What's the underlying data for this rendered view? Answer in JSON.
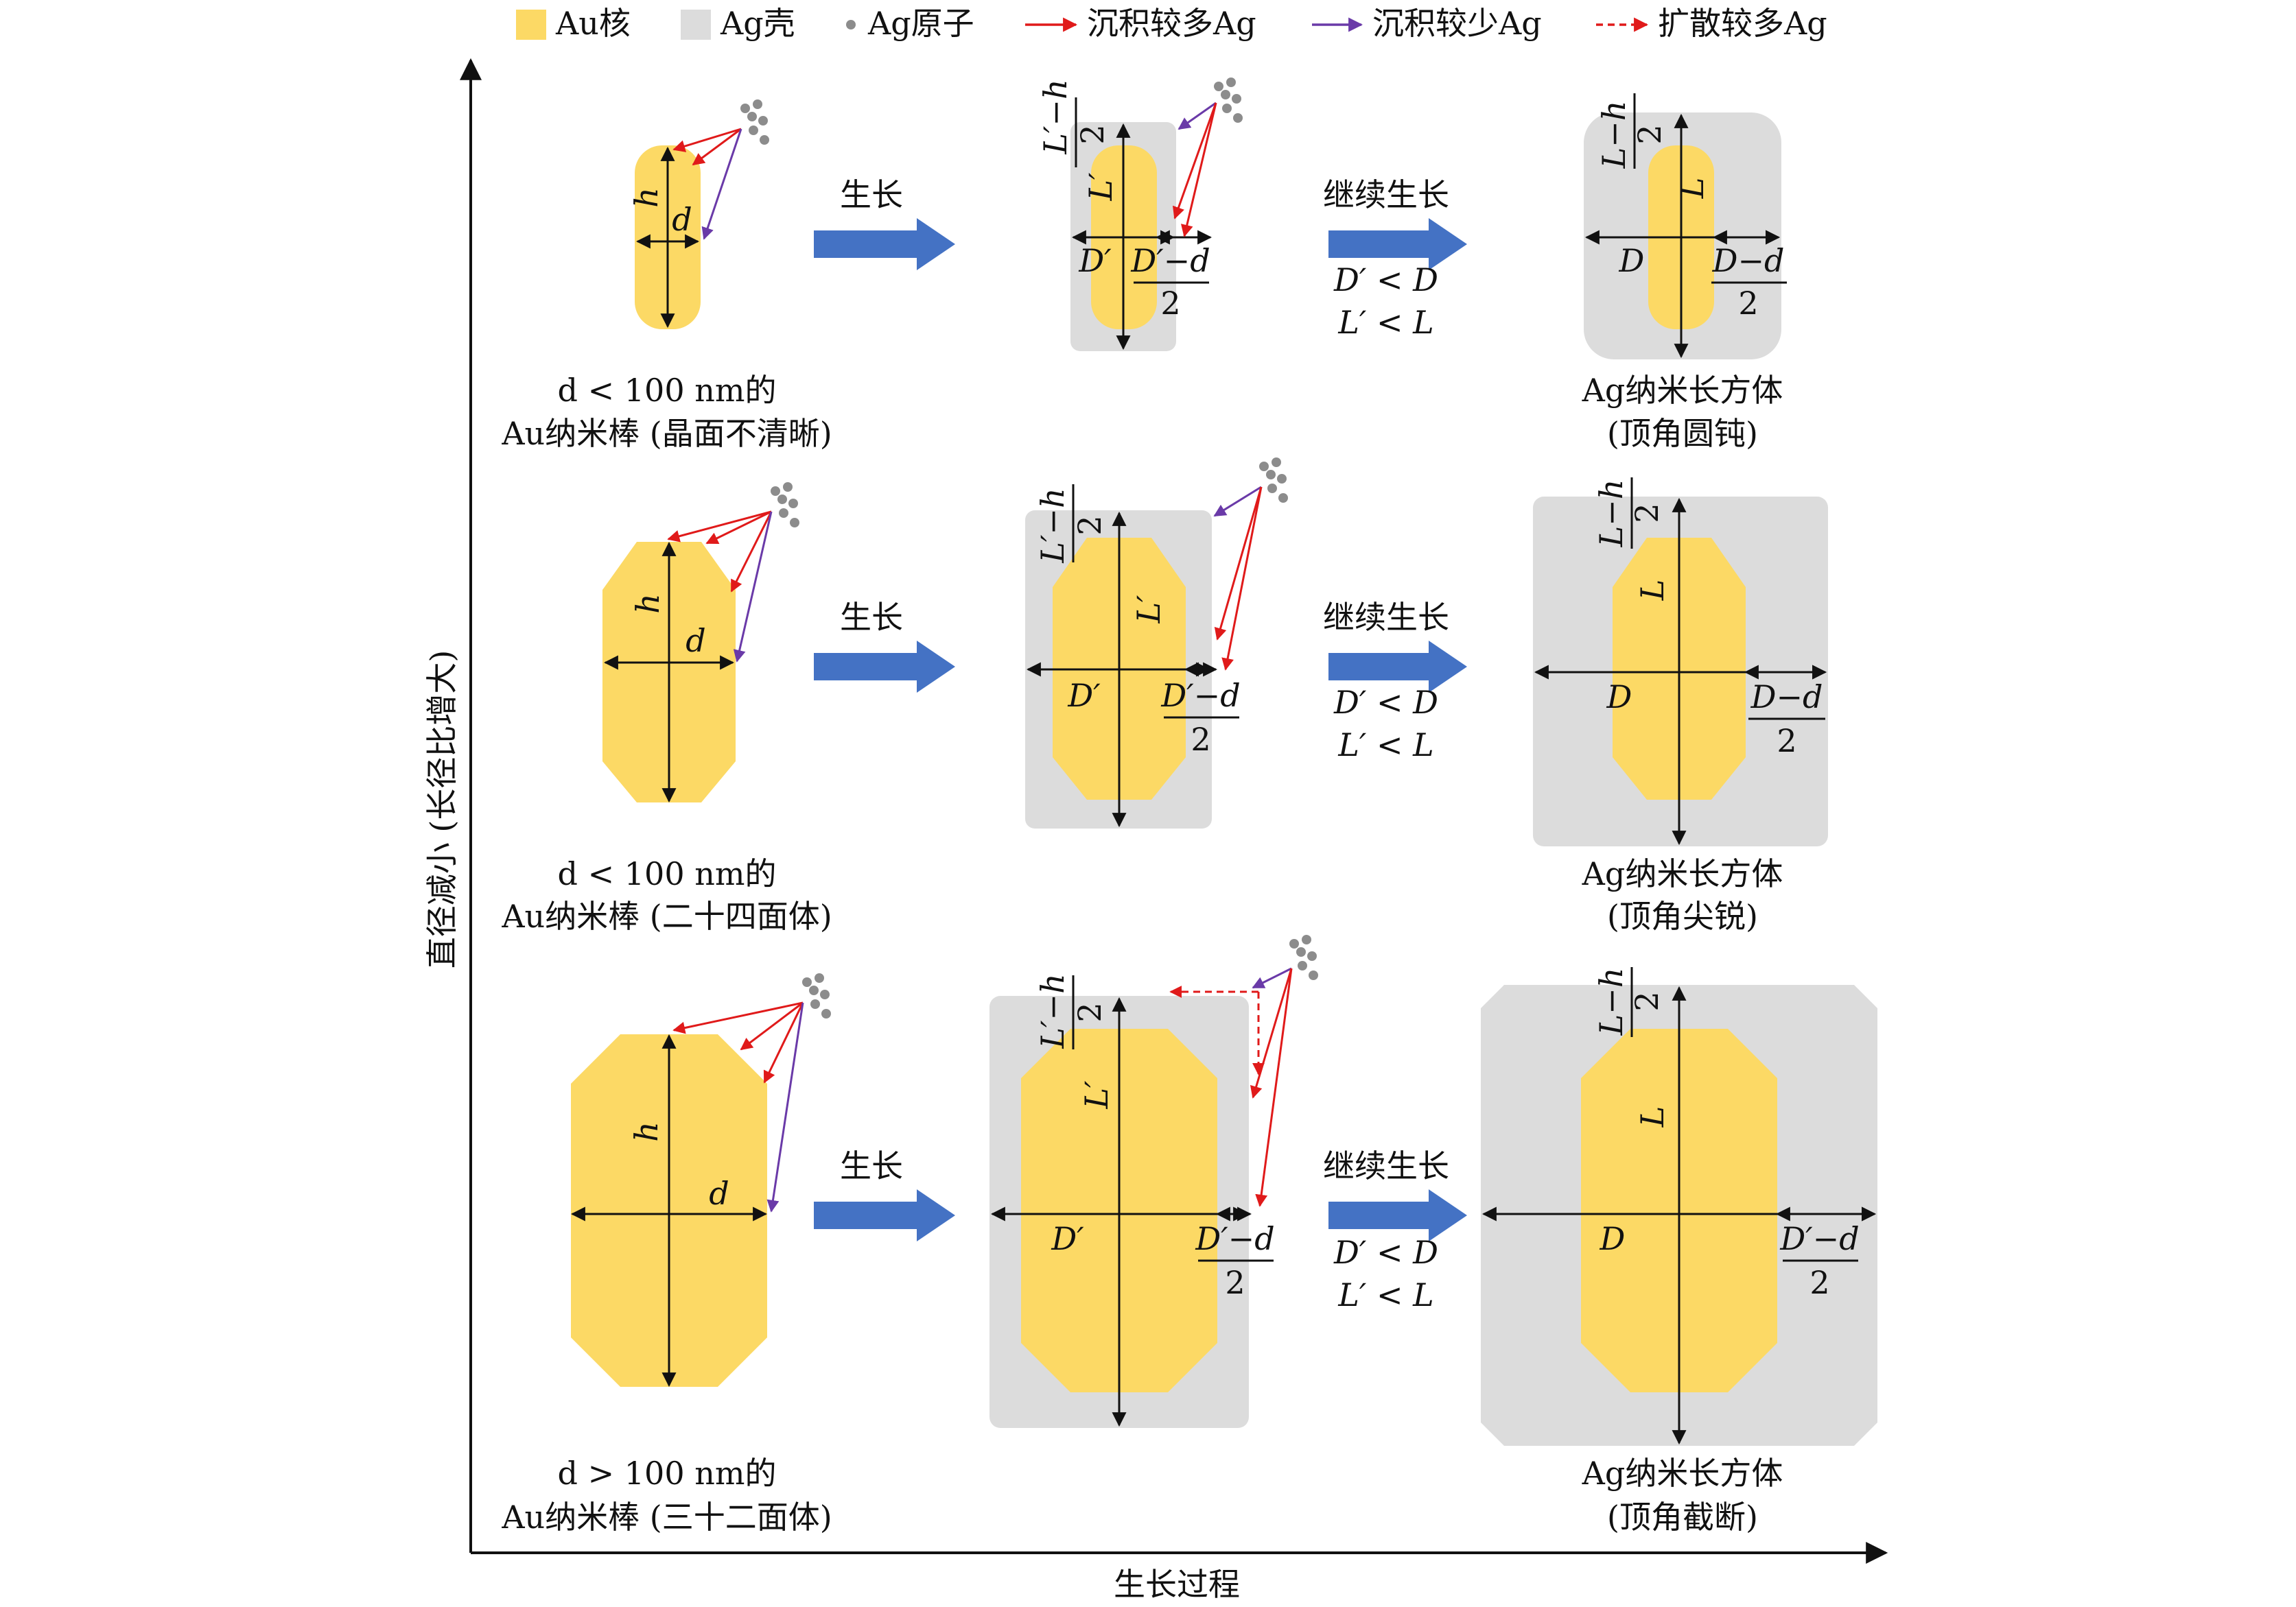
{
  "legend": {
    "au_core": "Au核",
    "ag_shell": "Ag壳",
    "ag_atom": "Ag原子",
    "more_deposit": "沉积较多Ag",
    "less_deposit": "沉积较少Ag",
    "more_diffuse": "扩散较多Ag"
  },
  "axes": {
    "y_label": "直径减小 (长径比增大)",
    "x_label": "生长过程"
  },
  "steps": {
    "grow": "生长",
    "continue": "继续生长"
  },
  "symbols": {
    "h": "h",
    "d": "d",
    "L_prime": "L′",
    "D_prime": "D′",
    "L": "L",
    "D": "D",
    "Lp_minus_h": "L′−h",
    "L_minus_h": "L−h",
    "Dp_minus_d": "D′−d",
    "D_minus_d": "D−d",
    "two": "2",
    "cond_D": "D′ < D",
    "cond_L": "L′ < L"
  },
  "rows": [
    {
      "start_l1": "d < 100 nm的",
      "start_l2": "Au纳米棒 (晶面不清晰)",
      "end_l1": "Ag纳米长方体",
      "end_l2": "(顶角圆钝)"
    },
    {
      "start_l1": "d < 100 nm的",
      "start_l2": "Au纳米棒 (二十四面体)",
      "end_l1": "Ag纳米长方体",
      "end_l2": "(顶角尖锐)"
    },
    {
      "start_l1": "d > 100 nm的",
      "start_l2": "Au纳米棒 (三十二面体)",
      "end_l1": "Ag纳米长方体",
      "end_l2": "(顶角截断)"
    }
  ],
  "colors": {
    "au": "#FCD965",
    "ag": "#DCDCDC",
    "atom": "#8C8C8C",
    "red_arrow": "#E01A1A",
    "purple_arrow": "#6A3AA8",
    "process_arrow": "#4472C4"
  }
}
